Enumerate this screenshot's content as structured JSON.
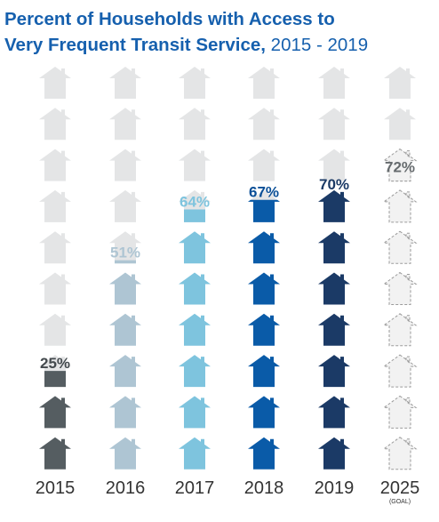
{
  "header": {
    "title_line1": "Percent of Households with Access to",
    "title_line2": "Very Frequent Transit Service,",
    "title_years": "2015 - 2019"
  },
  "colors": {
    "empty": "#e4e5e6",
    "text_dark": "#444a4e",
    "year_label": "#333333",
    "goal_outline": "#9b9b9b"
  },
  "chart_data": {
    "type": "bar",
    "title": "Percent of Households with Access to Very Frequent Transit Service, 2015 - 2019",
    "categories": [
      "2015",
      "2016",
      "2017",
      "2018",
      "2019",
      "2025"
    ],
    "values": [
      25,
      51,
      64,
      67,
      70,
      72
    ],
    "value_labels": [
      "25%",
      "51%",
      "64%",
      "67%",
      "70%",
      "72%"
    ],
    "category_notes": [
      "",
      "",
      "",
      "",
      "",
      "(GOAL)"
    ],
    "bar_colors": [
      "#555d61",
      "#aec5d3",
      "#7ec4de",
      "#0a5ba8",
      "#1b3a66",
      "#e4e5e6"
    ],
    "label_colors": [
      "#444a4e",
      "#aec5d3",
      "#7ec4de",
      "#0a4f97",
      "#1b3a66",
      "#666b6e"
    ],
    "goal_flags": [
      false,
      false,
      false,
      false,
      false,
      true
    ],
    "icons_per_column": 10,
    "icon_value": 10,
    "ylim": [
      0,
      100
    ],
    "xlabel": "",
    "ylabel": ""
  }
}
